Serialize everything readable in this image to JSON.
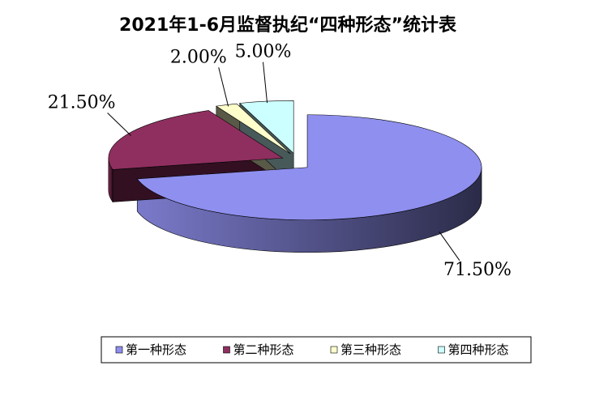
{
  "chart_data": {
    "type": "pie3d",
    "title": "2021年1-6月监督执纪“四种形态”统计表",
    "categories": [
      "第一种形态",
      "第二种形态",
      "第三种形态",
      "第四种形态"
    ],
    "values": [
      71.5,
      21.5,
      2,
      5
    ],
    "value_labels": [
      "71.50%",
      "21.50%",
      "2.00%",
      "5.00%"
    ],
    "colors": [
      "#8f8fef",
      "#8f2f5f",
      "#ffffcc",
      "#ccffff"
    ],
    "legend": "bottom"
  }
}
